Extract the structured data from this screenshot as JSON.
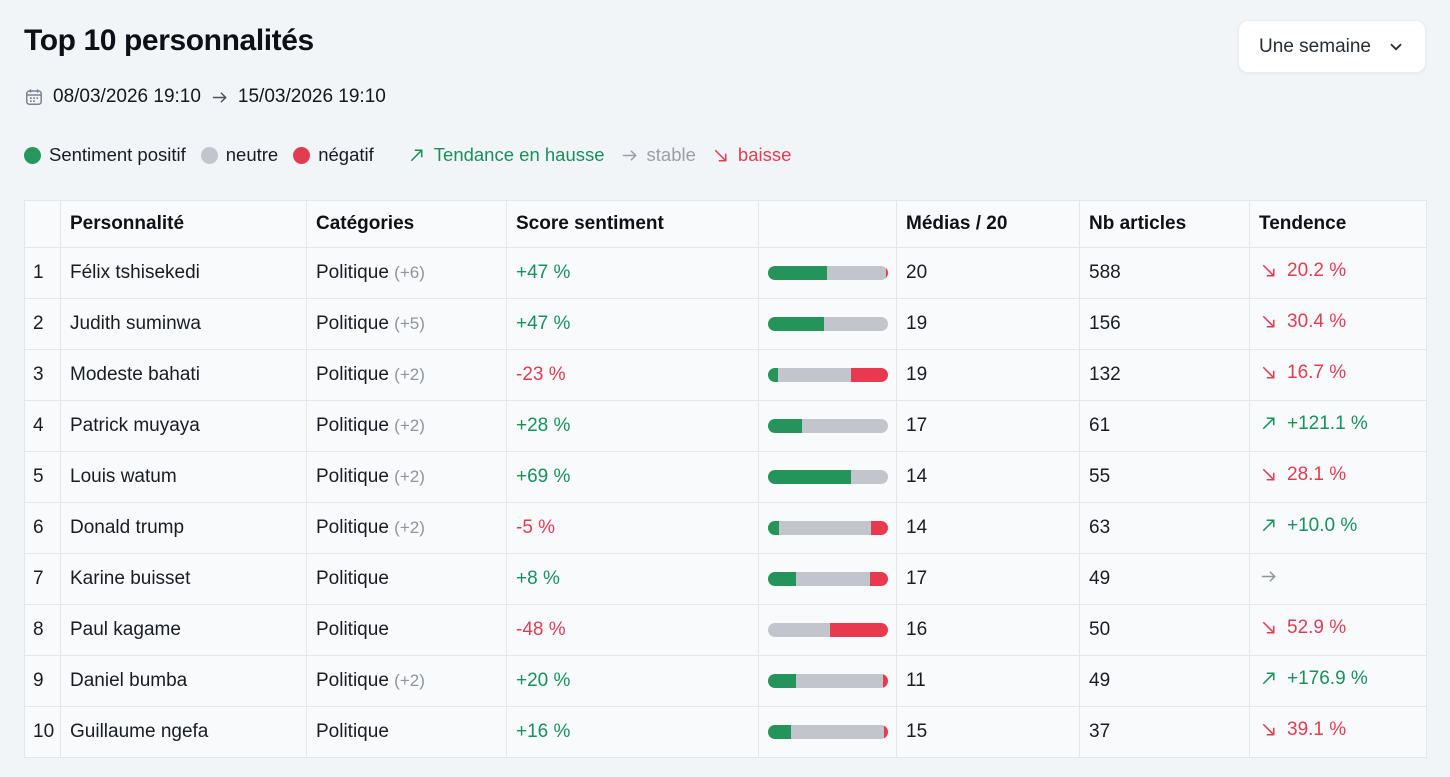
{
  "page": {
    "title": "Top 10 personnalités"
  },
  "period_selector": {
    "label": "Une semaine",
    "icon": "chevron-down-icon"
  },
  "date_range": {
    "start": "08/03/2026 19:10",
    "end": "15/03/2026 19:10",
    "icon": "calendar-icon"
  },
  "colors": {
    "positive_green": "#24945a",
    "neutral_gray": "#c2c6cc",
    "negative_red": "#e23c51",
    "page_background": "#f2f5f8",
    "cell_background": "#f8fafc"
  },
  "legend": {
    "sentiment": [
      {
        "label": "Sentiment positif",
        "color": "#27985d"
      },
      {
        "label": "neutre",
        "color": "#c2c6cc"
      },
      {
        "label": "négatif",
        "color": "#e23c51"
      }
    ],
    "trend": [
      {
        "label": "Tendance en hausse",
        "direction": "up",
        "color": "#1b8f5a"
      },
      {
        "label": "stable",
        "direction": "flat",
        "color": "#99a0a7"
      },
      {
        "label": "baisse",
        "direction": "down",
        "color": "#e23c51"
      }
    ]
  },
  "table": {
    "headers": {
      "rank": "",
      "name": "Personnalité",
      "categories": "Catégories",
      "score": "Score sentiment",
      "bar": "",
      "medias": "Médias / 20",
      "articles": "Nb articles",
      "trend": "Tendence"
    },
    "rows": [
      {
        "rank": "1",
        "name": "Félix tshisekedi",
        "category": "Politique",
        "category_extra": "(+6)",
        "score": "+47 %",
        "score_sign": "positive",
        "bar": {
          "positive": 49,
          "neutral": 49,
          "negative": 2
        },
        "medias": "20",
        "articles": "588",
        "trend": {
          "direction": "down",
          "value": "20.2 %"
        }
      },
      {
        "rank": "2",
        "name": "Judith suminwa",
        "category": "Politique",
        "category_extra": "(+5)",
        "score": "+47 %",
        "score_sign": "positive",
        "bar": {
          "positive": 47,
          "neutral": 53,
          "negative": 0
        },
        "medias": "19",
        "articles": "156",
        "trend": {
          "direction": "down",
          "value": "30.4 %"
        }
      },
      {
        "rank": "3",
        "name": "Modeste bahati",
        "category": "Politique",
        "category_extra": "(+2)",
        "score": "-23 %",
        "score_sign": "negative",
        "bar": {
          "positive": 8,
          "neutral": 61,
          "negative": 31
        },
        "medias": "19",
        "articles": "132",
        "trend": {
          "direction": "down",
          "value": "16.7 %"
        }
      },
      {
        "rank": "4",
        "name": "Patrick muyaya",
        "category": "Politique",
        "category_extra": "(+2)",
        "score": "+28 %",
        "score_sign": "positive",
        "bar": {
          "positive": 28,
          "neutral": 72,
          "negative": 0
        },
        "medias": "17",
        "articles": "61",
        "trend": {
          "direction": "up",
          "value": "+121.1 %"
        }
      },
      {
        "rank": "5",
        "name": "Louis watum",
        "category": "Politique",
        "category_extra": "(+2)",
        "score": "+69 %",
        "score_sign": "positive",
        "bar": {
          "positive": 69,
          "neutral": 31,
          "negative": 0
        },
        "medias": "14",
        "articles": "55",
        "trend": {
          "direction": "down",
          "value": "28.1 %"
        }
      },
      {
        "rank": "6",
        "name": "Donald trump",
        "category": "Politique",
        "category_extra": "(+2)",
        "score": "-5 %",
        "score_sign": "negative",
        "bar": {
          "positive": 9,
          "neutral": 77,
          "negative": 14
        },
        "medias": "14",
        "articles": "63",
        "trend": {
          "direction": "up",
          "value": "+10.0 %"
        }
      },
      {
        "rank": "7",
        "name": "Karine buisset",
        "category": "Politique",
        "category_extra": "",
        "score": "+8 %",
        "score_sign": "positive",
        "bar": {
          "positive": 23,
          "neutral": 62,
          "negative": 15
        },
        "medias": "17",
        "articles": "49",
        "trend": {
          "direction": "flat",
          "value": ""
        }
      },
      {
        "rank": "8",
        "name": "Paul kagame",
        "category": "Politique",
        "category_extra": "",
        "score": "-48 %",
        "score_sign": "negative",
        "bar": {
          "positive": 0,
          "neutral": 52,
          "negative": 48
        },
        "medias": "16",
        "articles": "50",
        "trend": {
          "direction": "down",
          "value": "52.9 %"
        }
      },
      {
        "rank": "9",
        "name": "Daniel bumba",
        "category": "Politique",
        "category_extra": "(+2)",
        "score": "+20 %",
        "score_sign": "positive",
        "bar": {
          "positive": 23,
          "neutral": 73,
          "negative": 4
        },
        "medias": "11",
        "articles": "49",
        "trend": {
          "direction": "up",
          "value": "+176.9 %"
        }
      },
      {
        "rank": "10",
        "name": "Guillaume ngefa",
        "category": "Politique",
        "category_extra": "",
        "score": "+16 %",
        "score_sign": "positive",
        "bar": {
          "positive": 19,
          "neutral": 78,
          "negative": 3
        },
        "medias": "15",
        "articles": "37",
        "trend": {
          "direction": "down",
          "value": "39.1 %"
        }
      }
    ]
  }
}
